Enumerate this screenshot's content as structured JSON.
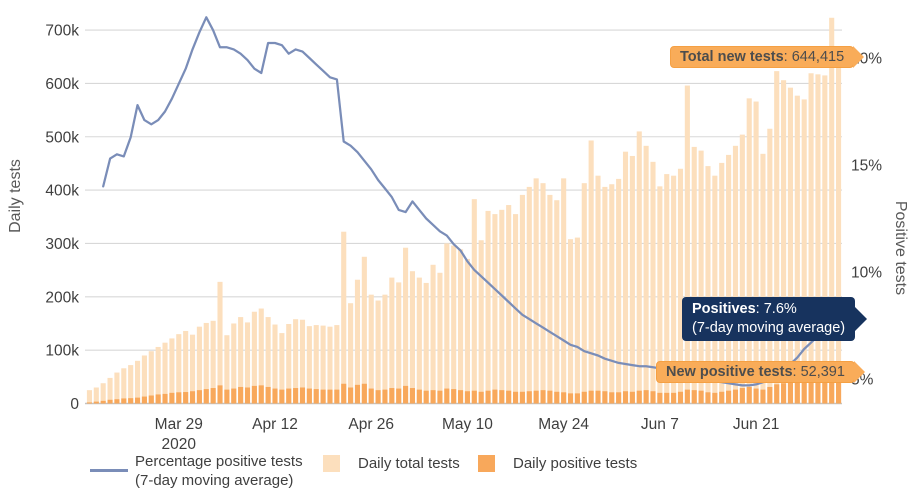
{
  "chart_data": {
    "type": "combo",
    "categories": [
      "Mar 16",
      "Mar 17",
      "Mar 18",
      "Mar 19",
      "Mar 20",
      "Mar 21",
      "Mar 22",
      "Mar 23",
      "Mar 24",
      "Mar 25",
      "Mar 26",
      "Mar 27",
      "Mar 28",
      "Mar 29",
      "Mar 30",
      "Mar 31",
      "Apr 1",
      "Apr 2",
      "Apr 3",
      "Apr 4",
      "Apr 5",
      "Apr 6",
      "Apr 7",
      "Apr 8",
      "Apr 9",
      "Apr 10",
      "Apr 11",
      "Apr 12",
      "Apr 13",
      "Apr 14",
      "Apr 15",
      "Apr 16",
      "Apr 17",
      "Apr 18",
      "Apr 19",
      "Apr 20",
      "Apr 21",
      "Apr 22",
      "Apr 23",
      "Apr 24",
      "Apr 25",
      "Apr 26",
      "Apr 27",
      "Apr 28",
      "Apr 29",
      "Apr 30",
      "May 1",
      "May 2",
      "May 3",
      "May 4",
      "May 5",
      "May 6",
      "May 7",
      "May 8",
      "May 9",
      "May 10",
      "May 11",
      "May 12",
      "May 13",
      "May 14",
      "May 15",
      "May 16",
      "May 17",
      "May 18",
      "May 19",
      "May 20",
      "May 21",
      "May 22",
      "May 23",
      "May 24",
      "May 25",
      "May 26",
      "May 27",
      "May 28",
      "May 29",
      "May 30",
      "May 31",
      "Jun 1",
      "Jun 2",
      "Jun 3",
      "Jun 4",
      "Jun 5",
      "Jun 6",
      "Jun 7",
      "Jun 8",
      "Jun 9",
      "Jun 10",
      "Jun 11",
      "Jun 12",
      "Jun 13",
      "Jun 14",
      "Jun 15",
      "Jun 16",
      "Jun 17",
      "Jun 18",
      "Jun 19",
      "Jun 20",
      "Jun 21",
      "Jun 22",
      "Jun 23",
      "Jun 24",
      "Jun 25",
      "Jun 26",
      "Jun 27",
      "Jun 28",
      "Jun 29",
      "Jun 30",
      "Jul 1",
      "Jul 2",
      "Jul 3"
    ],
    "series": [
      {
        "name": "Daily total tests",
        "type": "bar",
        "axis": "left",
        "color": "#fcdfbd",
        "values": [
          25000,
          30000,
          38000,
          48000,
          58000,
          66000,
          72000,
          80000,
          90000,
          98000,
          106000,
          114000,
          122000,
          130000,
          136000,
          129000,
          144000,
          151000,
          155000,
          228000,
          128000,
          150000,
          162000,
          152000,
          172000,
          178000,
          162000,
          148000,
          132000,
          149000,
          158000,
          157000,
          145000,
          147000,
          146000,
          144000,
          147000,
          322000,
          188000,
          232000,
          275000,
          204000,
          193000,
          204000,
          236000,
          227000,
          292000,
          248000,
          236000,
          226000,
          260000,
          245000,
          300000,
          296000,
          289000,
          271000,
          383000,
          306000,
          361000,
          355000,
          363000,
          372000,
          355000,
          391000,
          406000,
          422000,
          413000,
          391000,
          381000,
          422000,
          308000,
          311000,
          413000,
          493000,
          427000,
          406000,
          411000,
          421000,
          472000,
          464000,
          510000,
          483000,
          453000,
          407000,
          430000,
          427000,
          440000,
          596000,
          481000,
          474000,
          445000,
          427000,
          451000,
          466000,
          483000,
          504000,
          572000,
          566000,
          468000,
          515000,
          623000,
          606000,
          592000,
          577000,
          570000,
          619000,
          617000,
          615000,
          723000,
          644415
        ]
      },
      {
        "name": "Daily positive tests",
        "type": "bar",
        "axis": "left",
        "color": "#f8a85b",
        "values": [
          2000,
          3500,
          5000,
          7000,
          8000,
          9500,
          10000,
          11000,
          13000,
          15000,
          17000,
          18000,
          20000,
          21000,
          21500,
          23000,
          25000,
          27000,
          29000,
          34000,
          26000,
          28000,
          31000,
          30000,
          33000,
          34000,
          31000,
          28000,
          26000,
          28000,
          29000,
          30000,
          28000,
          27000,
          26000,
          26000,
          26000,
          37000,
          30000,
          35000,
          37000,
          28000,
          25000,
          26000,
          29000,
          28000,
          33000,
          29000,
          26000,
          24000,
          25000,
          24000,
          28000,
          27000,
          25000,
          23000,
          24000,
          22000,
          24000,
          26000,
          25000,
          24000,
          22000,
          22000,
          23000,
          24000,
          25000,
          24000,
          22000,
          21000,
          19000,
          19000,
          22000,
          24000,
          24000,
          23000,
          21000,
          21000,
          23000,
          22000,
          24000,
          25000,
          23000,
          20000,
          20000,
          20000,
          22000,
          26000,
          25000,
          24000,
          21000,
          20000,
          22000,
          24000,
          26000,
          29000,
          31000,
          28000,
          26000,
          31000,
          36000,
          38000,
          42000,
          43000,
          42000,
          44000,
          46000,
          50000,
          55000,
          52391
        ]
      },
      {
        "name": "Percentage positive tests (7-day moving average)",
        "type": "line",
        "axis": "right",
        "color": "#7a8db8",
        "values": [
          null,
          null,
          14.0,
          15.3,
          15.5,
          15.4,
          16.3,
          17.8,
          17.1,
          16.9,
          17.1,
          17.5,
          18.1,
          18.8,
          19.5,
          20.4,
          21.2,
          21.9,
          21.3,
          20.5,
          20.5,
          20.4,
          20.2,
          19.9,
          19.5,
          19.3,
          20.7,
          20.7,
          20.6,
          20.2,
          20.4,
          20.3,
          20.0,
          19.7,
          19.4,
          19.1,
          19.0,
          16.1,
          15.9,
          15.6,
          15.2,
          14.8,
          14.3,
          13.9,
          13.5,
          12.9,
          12.8,
          13.3,
          12.9,
          12.5,
          12.2,
          11.9,
          11.7,
          11.3,
          11.0,
          10.5,
          10.1,
          9.8,
          9.5,
          9.2,
          8.9,
          8.6,
          8.3,
          8.0,
          7.8,
          7.6,
          7.4,
          7.2,
          7.0,
          6.8,
          6.6,
          6.5,
          6.3,
          6.2,
          6.1,
          5.95,
          5.85,
          5.75,
          5.7,
          5.65,
          5.6,
          5.6,
          5.55,
          5.5,
          5.45,
          5.5,
          5.4,
          5.3,
          5.2,
          5.1,
          5.0,
          4.9,
          4.85,
          4.8,
          4.75,
          4.7,
          4.7,
          4.75,
          4.85,
          5.0,
          5.2,
          5.4,
          5.7,
          6.0,
          6.4,
          6.7,
          7.0,
          7.3,
          7.45,
          7.6
        ]
      }
    ],
    "y_left_axis": {
      "title": "Daily tests",
      "max": 740000,
      "ticks": [
        {
          "value": 700000,
          "label": "700k"
        },
        {
          "value": 600000,
          "label": "600k"
        },
        {
          "value": 500000,
          "label": "500k"
        },
        {
          "value": 400000,
          "label": "400k"
        },
        {
          "value": 300000,
          "label": "300k"
        },
        {
          "value": 200000,
          "label": "200k"
        },
        {
          "value": 100000,
          "label": "100k"
        },
        {
          "value": 0,
          "label": "0"
        }
      ]
    },
    "y_right_axis": {
      "title": "Positive tests",
      "ticks": [
        {
          "value": 20,
          "label": "20%"
        },
        {
          "value": 15,
          "label": "15%"
        },
        {
          "value": 10,
          "label": "10%"
        },
        {
          "value": 5,
          "label": "5%"
        }
      ]
    },
    "x_axis": {
      "ticks": [
        {
          "label": "Mar 29",
          "sub": "2020",
          "index": 13
        },
        {
          "label": "Apr 12",
          "index": 27
        },
        {
          "label": "Apr 26",
          "index": 41
        },
        {
          "label": "May 10",
          "index": 55
        },
        {
          "label": "May 24",
          "index": 69
        },
        {
          "label": "Jun 7",
          "index": 83
        },
        {
          "label": "Jun 21",
          "index": 97
        }
      ]
    },
    "grid": true,
    "legend_position": "bottom"
  },
  "annotations": {
    "total_tests": {
      "label": "Total new tests",
      "sep": ": ",
      "value": "644,415"
    },
    "positives": {
      "label": "Positives",
      "sep": ": ",
      "value": "7.6%",
      "subtitle": "(7-day moving average)"
    },
    "new_positives": {
      "label": "New positive tests",
      "sep": ": ",
      "value": "52,391"
    }
  },
  "legend": {
    "items": [
      {
        "label": "Percentage positive tests",
        "label2": "(7-day moving average)",
        "swatch": "line"
      },
      {
        "label": "Daily total tests",
        "swatch": "square-light"
      },
      {
        "label": "Daily positive tests",
        "swatch": "square-dark"
      }
    ]
  },
  "colors": {
    "total_bar": "#fcdfbd",
    "positive_bar": "#f8a85b",
    "line": "#7a8db8",
    "grid": "#d8d8d8",
    "axis_line": "#c2c2c2",
    "text": "#3f3f3f",
    "axis_title": "#585858",
    "navy_tooltip": "#17335e",
    "orange_tooltip": "#f9ac59"
  }
}
